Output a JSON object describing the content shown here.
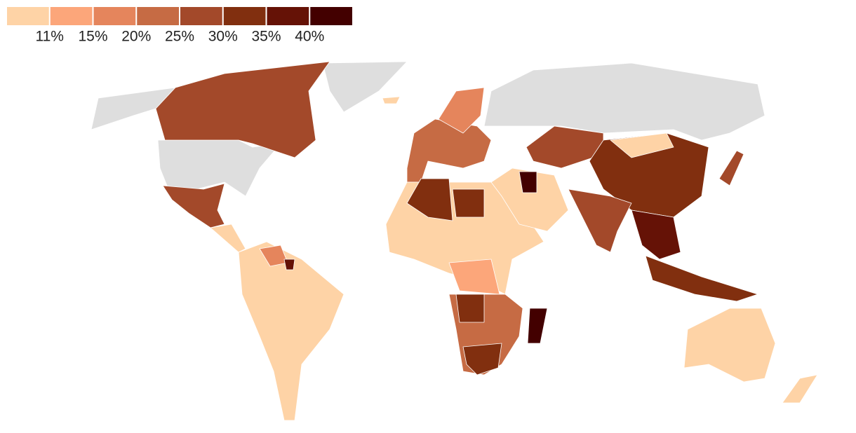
{
  "legend": {
    "colors": [
      "#fed3a6",
      "#fca67a",
      "#e5855c",
      "#c66b44",
      "#a3492a",
      "#812f0f",
      "#651206",
      "#430000"
    ],
    "labels": [
      "11%",
      "15%",
      "20%",
      "25%",
      "30%",
      "35%",
      "40%"
    ]
  },
  "no_data_color": "#dedede"
}
